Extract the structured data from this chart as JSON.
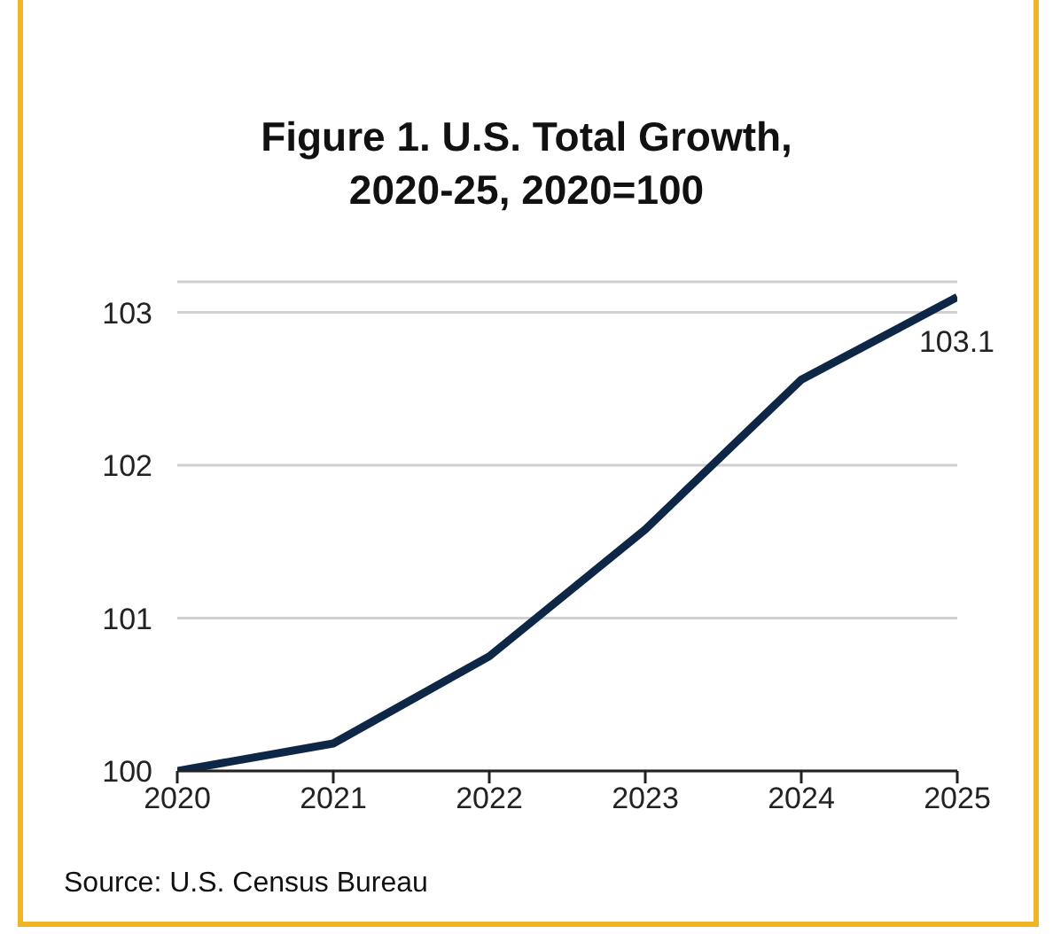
{
  "chart_data": {
    "type": "line",
    "title": "Figure 1. U.S. Total Growth,\n2020-25, 2020=100",
    "x": [
      2020,
      2021,
      2022,
      2023,
      2024,
      2025
    ],
    "series": [
      {
        "color": "#0f2747",
        "values": [
          100,
          100.18,
          100.75,
          101.58,
          102.56,
          103.1
        ]
      }
    ],
    "xlim": [
      2020,
      2025
    ],
    "xticks": [
      2020,
      2021,
      2022,
      2023,
      2024,
      2025
    ],
    "ylim": [
      100,
      103.2
    ],
    "yticks": [
      100,
      101,
      102,
      103
    ],
    "grid": "y",
    "legend": false,
    "marker": "none",
    "line_style": "solid",
    "annotations": [
      {
        "text": "103.1",
        "x": 2025,
        "y": 103.1
      },
      "Source: U.S. Census Bureau"
    ]
  }
}
